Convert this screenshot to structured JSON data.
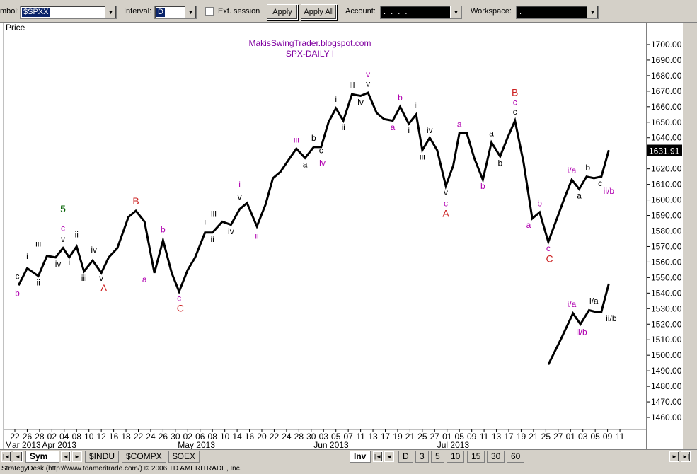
{
  "toolbar": {
    "symbol_label": "mbol:",
    "symbol_value": "$SPXX",
    "interval_label": "Interval:",
    "interval_value": "D",
    "ext_session_label": "Ext. session",
    "apply_label": "Apply",
    "apply_all_label": "Apply All",
    "account_label": "Account:",
    "account_value": ". . . .",
    "workspace_label": "Workspace:",
    "workspace_value": "."
  },
  "chart_data": {
    "type": "line",
    "title": "MakisSwingTrader.blogspot.com",
    "subtitle": "SPX-DAILY I",
    "ylabel": "Price",
    "ylim": [
      1455,
      1705
    ],
    "y_ticks": [
      "1700.00",
      "1690.00",
      "1680.00",
      "1670.00",
      "1660.00",
      "1650.00",
      "1640.00",
      "1630.00",
      "1620.00",
      "1610.00",
      "1600.00",
      "1590.00",
      "1580.00",
      "1570.00",
      "1560.00",
      "1550.00",
      "1540.00",
      "1530.00",
      "1520.00",
      "1510.00",
      "1500.00",
      "1490.00",
      "1480.00",
      "1470.00",
      "1460.00"
    ],
    "last_price": "1631.91",
    "grid": false,
    "x_day_labels": [
      "22",
      "26",
      "28",
      "02",
      "04",
      "08",
      "10",
      "12",
      "16",
      "18",
      "22",
      "24",
      "26",
      "30",
      "02",
      "06",
      "08",
      "10",
      "14",
      "16",
      "20",
      "22",
      "24",
      "28",
      "30",
      "03",
      "05",
      "07",
      "11",
      "13",
      "17",
      "19",
      "21",
      "25",
      "27",
      "01",
      "05",
      "09",
      "11",
      "13",
      "17",
      "19",
      "21",
      "25",
      "27",
      "01",
      "03",
      "05",
      "09",
      "11"
    ],
    "x_month_labels": [
      {
        "label": "Mar 2013",
        "index": 0
      },
      {
        "label": "Apr 2013",
        "index": 3
      },
      {
        "label": "May 2013",
        "index": 14
      },
      {
        "label": "Jun 2013",
        "index": 25
      },
      {
        "label": "Jul 2013",
        "index": 35
      }
    ],
    "series": [
      {
        "values": [
          [
            0.3,
            1545
          ],
          [
            1,
            1556
          ],
          [
            1.9,
            1551
          ],
          [
            2.6,
            1564
          ],
          [
            3.3,
            1563
          ],
          [
            3.9,
            1569
          ],
          [
            4.4,
            1563
          ],
          [
            5,
            1570
          ],
          [
            5.6,
            1554
          ],
          [
            6.3,
            1561
          ],
          [
            7,
            1553
          ],
          [
            7.6,
            1563
          ],
          [
            8.3,
            1569
          ],
          [
            9.2,
            1589
          ],
          [
            9.8,
            1593
          ],
          [
            10.5,
            1586
          ],
          [
            11.3,
            1553
          ],
          [
            12,
            1574
          ],
          [
            12.7,
            1553
          ],
          [
            13.3,
            1541
          ],
          [
            14,
            1555
          ],
          [
            14.6,
            1563
          ],
          [
            15.4,
            1579
          ],
          [
            16,
            1579
          ],
          [
            16.8,
            1586
          ],
          [
            17.5,
            1584
          ],
          [
            18.2,
            1594
          ],
          [
            18.8,
            1598
          ],
          [
            19.6,
            1583
          ],
          [
            20.3,
            1597
          ],
          [
            20.9,
            1614
          ],
          [
            21.5,
            1618
          ],
          [
            22.1,
            1625
          ],
          [
            22.8,
            1633
          ],
          [
            23.5,
            1627
          ],
          [
            24.2,
            1634
          ],
          [
            24.8,
            1634
          ],
          [
            25.4,
            1650
          ],
          [
            26,
            1659
          ],
          [
            26.6,
            1651
          ],
          [
            27.3,
            1668
          ],
          [
            28,
            1667
          ],
          [
            28.6,
            1669
          ],
          [
            29.3,
            1656
          ],
          [
            29.9,
            1652
          ],
          [
            30.6,
            1651
          ],
          [
            31.2,
            1660
          ],
          [
            31.9,
            1649
          ],
          [
            32.5,
            1655
          ],
          [
            33,
            1632
          ],
          [
            33.6,
            1640
          ],
          [
            34.2,
            1632
          ],
          [
            34.9,
            1609
          ],
          [
            35.5,
            1622
          ],
          [
            36,
            1643
          ],
          [
            36.6,
            1643
          ],
          [
            37.2,
            1627
          ],
          [
            37.9,
            1613
          ],
          [
            38.6,
            1637
          ],
          [
            39.3,
            1628
          ],
          [
            39.9,
            1640
          ],
          [
            40.5,
            1651
          ],
          [
            41.2,
            1624
          ],
          [
            41.9,
            1588
          ],
          [
            42.5,
            1592
          ],
          [
            43.2,
            1573
          ],
          [
            43.9,
            1588
          ],
          [
            44.5,
            1601
          ],
          [
            45.1,
            1613
          ],
          [
            45.7,
            1607
          ],
          [
            46.3,
            1615
          ],
          [
            46.9,
            1614
          ],
          [
            47.5,
            1615
          ],
          [
            48.1,
            1632
          ]
        ]
      },
      {
        "values": [
          [
            43.2,
            1494
          ],
          [
            44.2,
            1510
          ],
          [
            45.2,
            1527
          ],
          [
            45.8,
            1520
          ],
          [
            46.5,
            1529
          ],
          [
            47,
            1528
          ],
          [
            47.5,
            1528
          ],
          [
            48.1,
            1546
          ]
        ]
      }
    ],
    "annotations": [
      {
        "text": "b",
        "x": 0.2,
        "y": 1538,
        "color": "#b000b0"
      },
      {
        "text": "c",
        "x": 0.2,
        "y": 1549,
        "color": "#000000"
      },
      {
        "text": "i",
        "x": 1,
        "y": 1562,
        "color": "#000000"
      },
      {
        "text": "ii",
        "x": 1.9,
        "y": 1545,
        "color": "#000000"
      },
      {
        "text": "iii",
        "x": 1.9,
        "y": 1570,
        "color": "#000000"
      },
      {
        "text": "iv",
        "x": 3.5,
        "y": 1557,
        "color": "#000000"
      },
      {
        "text": "v",
        "x": 3.9,
        "y": 1573,
        "color": "#000000"
      },
      {
        "text": "c",
        "x": 3.9,
        "y": 1580,
        "color": "#b000b0"
      },
      {
        "text": "5",
        "x": 3.9,
        "y": 1592,
        "color": "#006000"
      },
      {
        "text": "i",
        "x": 4.4,
        "y": 1558,
        "color": "#000000"
      },
      {
        "text": "ii",
        "x": 5,
        "y": 1576,
        "color": "#000000"
      },
      {
        "text": "iii",
        "x": 5.6,
        "y": 1548,
        "color": "#000000"
      },
      {
        "text": "iv",
        "x": 6.4,
        "y": 1566,
        "color": "#000000"
      },
      {
        "text": "v",
        "x": 7,
        "y": 1548,
        "color": "#000000"
      },
      {
        "text": "A",
        "x": 7.2,
        "y": 1541,
        "color": "#cc2020"
      },
      {
        "text": "B",
        "x": 9.8,
        "y": 1597,
        "color": "#cc2020"
      },
      {
        "text": "a",
        "x": 10.5,
        "y": 1547,
        "color": "#b000b0"
      },
      {
        "text": "b",
        "x": 12,
        "y": 1579,
        "color": "#b000b0"
      },
      {
        "text": "c",
        "x": 13.3,
        "y": 1535,
        "color": "#b000b0"
      },
      {
        "text": "C",
        "x": 13.4,
        "y": 1528,
        "color": "#cc2020"
      },
      {
        "text": "i",
        "x": 15.4,
        "y": 1584,
        "color": "#000000"
      },
      {
        "text": "ii",
        "x": 16,
        "y": 1573,
        "color": "#000000"
      },
      {
        "text": "iii",
        "x": 16.1,
        "y": 1589,
        "color": "#000000"
      },
      {
        "text": "iv",
        "x": 17.5,
        "y": 1578,
        "color": "#000000"
      },
      {
        "text": "v",
        "x": 18.2,
        "y": 1600,
        "color": "#000000"
      },
      {
        "text": "i",
        "x": 18.2,
        "y": 1608,
        "color": "#b000b0"
      },
      {
        "text": "ii",
        "x": 19.6,
        "y": 1575,
        "color": "#b000b0"
      },
      {
        "text": "iii",
        "x": 22.8,
        "y": 1637,
        "color": "#b000b0"
      },
      {
        "text": "a",
        "x": 23.5,
        "y": 1621,
        "color": "#000000"
      },
      {
        "text": "b",
        "x": 24.2,
        "y": 1638,
        "color": "#000000"
      },
      {
        "text": "c",
        "x": 24.8,
        "y": 1630,
        "color": "#000000"
      },
      {
        "text": "iv",
        "x": 24.9,
        "y": 1622,
        "color": "#b000b0"
      },
      {
        "text": "i",
        "x": 26,
        "y": 1663,
        "color": "#000000"
      },
      {
        "text": "ii",
        "x": 26.6,
        "y": 1645,
        "color": "#000000"
      },
      {
        "text": "iii",
        "x": 27.3,
        "y": 1672,
        "color": "#000000"
      },
      {
        "text": "iv",
        "x": 28,
        "y": 1661,
        "color": "#000000"
      },
      {
        "text": "v",
        "x": 28.6,
        "y": 1673,
        "color": "#000000"
      },
      {
        "text": "v",
        "x": 28.6,
        "y": 1679,
        "color": "#b000b0"
      },
      {
        "text": "a",
        "x": 30.6,
        "y": 1645,
        "color": "#b000b0"
      },
      {
        "text": "b",
        "x": 31.2,
        "y": 1664,
        "color": "#b000b0"
      },
      {
        "text": "i",
        "x": 31.9,
        "y": 1643,
        "color": "#000000"
      },
      {
        "text": "ii",
        "x": 32.5,
        "y": 1659,
        "color": "#000000"
      },
      {
        "text": "iii",
        "x": 33,
        "y": 1626,
        "color": "#000000"
      },
      {
        "text": "iv",
        "x": 33.6,
        "y": 1643,
        "color": "#000000"
      },
      {
        "text": "v",
        "x": 34.9,
        "y": 1603,
        "color": "#000000"
      },
      {
        "text": "c",
        "x": 34.9,
        "y": 1596,
        "color": "#b000b0"
      },
      {
        "text": "A",
        "x": 34.9,
        "y": 1589,
        "color": "#cc2020"
      },
      {
        "text": "a",
        "x": 36,
        "y": 1647,
        "color": "#b000b0"
      },
      {
        "text": "b",
        "x": 37.9,
        "y": 1607,
        "color": "#b000b0"
      },
      {
        "text": "a",
        "x": 38.6,
        "y": 1641,
        "color": "#000000"
      },
      {
        "text": "b",
        "x": 39.3,
        "y": 1622,
        "color": "#000000"
      },
      {
        "text": "c",
        "x": 40.5,
        "y": 1655,
        "color": "#000000"
      },
      {
        "text": "c",
        "x": 40.5,
        "y": 1661,
        "color": "#b000b0"
      },
      {
        "text": "B",
        "x": 40.5,
        "y": 1667,
        "color": "#cc2020"
      },
      {
        "text": "a",
        "x": 41.6,
        "y": 1582,
        "color": "#b000b0"
      },
      {
        "text": "b",
        "x": 42.5,
        "y": 1596,
        "color": "#b000b0"
      },
      {
        "text": "c",
        "x": 43.2,
        "y": 1567,
        "color": "#b000b0"
      },
      {
        "text": "C",
        "x": 43.3,
        "y": 1560,
        "color": "#cc2020"
      },
      {
        "text": "i/a",
        "x": 45.1,
        "y": 1617,
        "color": "#b000b0"
      },
      {
        "text": "a",
        "x": 45.7,
        "y": 1601,
        "color": "#000000"
      },
      {
        "text": "b",
        "x": 46.4,
        "y": 1619,
        "color": "#000000"
      },
      {
        "text": "c",
        "x": 47.4,
        "y": 1609,
        "color": "#000000"
      },
      {
        "text": "ii/b",
        "x": 48.1,
        "y": 1604,
        "color": "#b000b0"
      },
      {
        "text": "i/a",
        "x": 45.1,
        "y": 1531,
        "color": "#b000b0"
      },
      {
        "text": "ii/b",
        "x": 45.9,
        "y": 1513,
        "color": "#b000b0"
      },
      {
        "text": "i/a",
        "x": 46.9,
        "y": 1533,
        "color": "#000000"
      },
      {
        "text": "ii/b",
        "x": 48.3,
        "y": 1522,
        "color": "#000000"
      }
    ]
  },
  "tabbar": {
    "sym_label": "Sym",
    "symbol_tabs": [
      "$INDU",
      "$COMPX",
      "$OEX"
    ],
    "inv_label": "Inv",
    "interval_tabs": [
      "D",
      "3",
      "5",
      "10",
      "15",
      "30",
      "60"
    ]
  },
  "status": {
    "text": "StrategyDesk (http://www.tdameritrade.com/) © 2006 TD AMERITRADE, Inc."
  }
}
